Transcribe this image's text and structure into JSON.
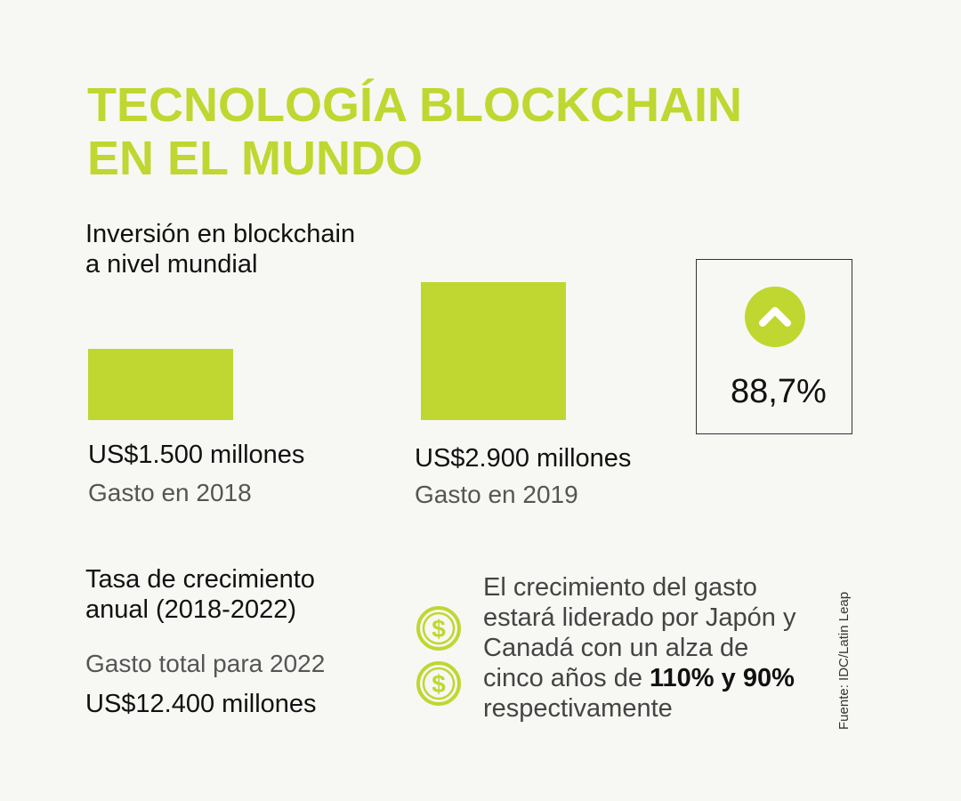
{
  "title": {
    "line1": "TECNOLOGÍA BLOCKCHAIN",
    "line2": "EN EL MUNDO"
  },
  "subtitle": {
    "line1": "Inversión en blockchain",
    "line2": "a nivel mundial"
  },
  "chart_data": {
    "type": "bar",
    "categories": [
      "Gasto en 2018",
      "Gasto en 2019"
    ],
    "values": [
      1500,
      2900
    ],
    "value_labels": [
      "US$1.500 millones",
      "US$2.900 millones"
    ],
    "units": "US$ millones",
    "title": "Inversión en blockchain a nivel mundial",
    "bar_color": "#bfd730",
    "grid": false
  },
  "growth": {
    "value": "88,7%",
    "icon": "chevron-up-icon"
  },
  "rate": {
    "title_line1": "Tasa de crecimiento",
    "title_line2": "anual (2018-2022)",
    "total_label": "Gasto total para 2022",
    "total_value": "US$12.400 millones"
  },
  "note": {
    "line1": "El crecimiento del gasto",
    "line2": "estará liderado por Japón y",
    "line3": "Canadá con un alza de",
    "line4_prefix": "cinco años de ",
    "line4_bold": "110% y 90%",
    "line5": "respectivamente",
    "icon": "dollar-icon"
  },
  "source": "Fuente: IDC/Latin Leap",
  "colors": {
    "accent": "#bfd730",
    "text": "#111111",
    "background": "#f7f8f3"
  }
}
